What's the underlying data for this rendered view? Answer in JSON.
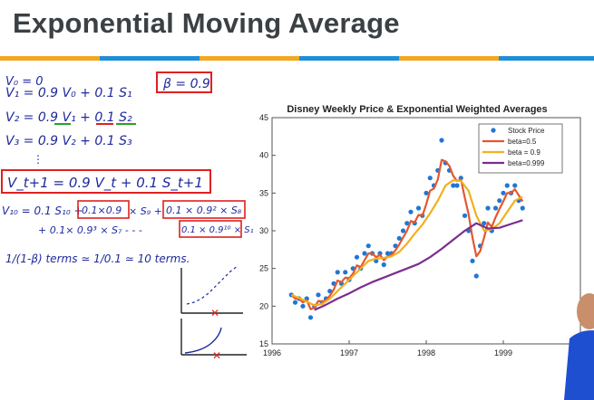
{
  "slide": {
    "title": "Exponential Moving Average",
    "stripe_colors": [
      "#f5a623",
      "#1f8fd6",
      "#f5a623",
      "#1f8fd6",
      "#f5a623",
      "#1f8fd6"
    ]
  },
  "notes": {
    "line1": "V₀ = 0",
    "line2": "V₁ = 0.9 V₀ + 0.1 S₁",
    "beta_box": "β = 0.9",
    "line3": "V₂ = 0.9 V₁ + 0.1 S₂",
    "line4": "V₃ = 0.9 V₂ + 0.1 S₃",
    "line5": "⋮",
    "box_formula": "V_t+1 = 0.9 V_t + 0.1 S_t+1",
    "v10_lhs": "V₁₀ = 0.1 S₁₀ +",
    "v10_t2": "0.1×0.9",
    "v10_t2b": "× S₉ +",
    "v10_t3": "0.1 × 0.9² × S₈",
    "v10_t4": "+ 0.1× 0.9³ × S₇   - - -",
    "v10_t5": "0.1 × 0.9¹⁰ × S₁",
    "terms": "1/(1-β) terms ≃ 1/0.1 ≃ 10 terms."
  },
  "chart_data": {
    "type": "line",
    "title": "Disney Weekly Price & Exponential Weighted Averages",
    "xlim": [
      1996,
      2000
    ],
    "ylim": [
      15,
      45
    ],
    "x_ticks": [
      "1996",
      "1997",
      "1998",
      "1999",
      "20"
    ],
    "y_ticks": [
      "15",
      "20",
      "25",
      "30",
      "35",
      "40",
      "45"
    ],
    "legend_position": "top-right",
    "series": [
      {
        "name": "Stock Price",
        "style": "points",
        "color": "#1f77d4",
        "x": [
          1996.25,
          1996.3,
          1996.35,
          1996.4,
          1996.45,
          1996.5,
          1996.55,
          1996.6,
          1996.65,
          1996.7,
          1996.75,
          1996.8,
          1996.85,
          1996.9,
          1996.95,
          1997.0,
          1997.05,
          1997.1,
          1997.15,
          1997.2,
          1997.25,
          1997.3,
          1997.35,
          1997.4,
          1997.45,
          1997.5,
          1997.55,
          1997.6,
          1997.65,
          1997.7,
          1997.75,
          1997.8,
          1997.85,
          1997.9,
          1997.95,
          1998.0,
          1998.05,
          1998.1,
          1998.15,
          1998.2,
          1998.25,
          1998.3,
          1998.35,
          1998.4,
          1998.45,
          1998.5,
          1998.55,
          1998.6,
          1998.65,
          1998.7,
          1998.75,
          1998.8,
          1998.85,
          1998.9,
          1998.95,
          1999.0,
          1999.05,
          1999.1,
          1999.15,
          1999.2,
          1999.25
        ],
        "y": [
          21.5,
          20.5,
          21,
          20,
          21,
          18.5,
          20,
          21.5,
          20.5,
          21,
          22,
          23,
          24.5,
          23,
          24.5,
          23.5,
          25,
          26.5,
          25,
          27,
          28,
          27,
          26,
          27,
          25.5,
          27,
          27,
          28,
          29,
          30,
          31,
          32.5,
          31,
          33,
          32,
          35,
          37,
          36,
          38,
          42,
          39,
          38,
          36,
          36,
          37,
          32,
          30,
          26,
          24,
          28,
          31,
          33,
          30,
          33,
          34,
          35,
          36,
          35,
          36,
          34,
          33
        ],
        "legend": "Stock Price"
      },
      {
        "name": "beta=0.5",
        "style": "line",
        "color": "#e4572e",
        "x": [
          1996.25,
          1996.3,
          1996.35,
          1996.4,
          1996.45,
          1996.5,
          1996.55,
          1996.6,
          1996.65,
          1996.7,
          1996.75,
          1996.8,
          1996.85,
          1996.9,
          1996.95,
          1997.0,
          1997.05,
          1997.1,
          1997.15,
          1997.2,
          1997.25,
          1997.3,
          1997.35,
          1997.4,
          1997.45,
          1997.5,
          1997.55,
          1997.6,
          1997.65,
          1997.7,
          1997.75,
          1997.8,
          1997.85,
          1997.9,
          1997.95,
          1998.0,
          1998.05,
          1998.1,
          1998.15,
          1998.2,
          1998.25,
          1998.3,
          1998.35,
          1998.4,
          1998.45,
          1998.5,
          1998.55,
          1998.6,
          1998.65,
          1998.7,
          1998.75,
          1998.8,
          1998.85,
          1998.9,
          1998.95,
          1999.0,
          1999.05,
          1999.1,
          1999.15,
          1999.2,
          1999.25
        ],
        "y": [
          21.5,
          21,
          21,
          20.5,
          20.8,
          19.6,
          19.8,
          20.7,
          20.6,
          20.8,
          21.4,
          22.2,
          23.4,
          23.2,
          23.8,
          23.7,
          24.3,
          25.4,
          25.2,
          26.1,
          27,
          27,
          26.5,
          26.8,
          26.1,
          26.6,
          26.8,
          27.4,
          28.2,
          29.1,
          30,
          31.3,
          31.1,
          32.1,
          32,
          33.5,
          35.3,
          35.6,
          36.8,
          39.4,
          39.2,
          38.6,
          37.3,
          36.6,
          36.8,
          34.4,
          32.2,
          29.1,
          26.6,
          27.3,
          29.1,
          31.1,
          30.5,
          31.8,
          32.9,
          33.9,
          35,
          35,
          35.5,
          34.7,
          33.9
        ]
      },
      {
        "name": "beta = 0.9",
        "style": "line",
        "color": "#f2b01e",
        "x": [
          1996.25,
          1996.35,
          1996.45,
          1996.55,
          1996.65,
          1996.75,
          1996.85,
          1996.95,
          1997.05,
          1997.15,
          1997.25,
          1997.35,
          1997.45,
          1997.55,
          1997.65,
          1997.75,
          1997.85,
          1997.95,
          1998.05,
          1998.15,
          1998.25,
          1998.35,
          1998.45,
          1998.55,
          1998.65,
          1998.75,
          1998.85,
          1998.95,
          1999.05,
          1999.15,
          1999.25
        ],
        "y": [
          21.5,
          21.1,
          20.6,
          20.1,
          20.3,
          21,
          22,
          23,
          24,
          25,
          26,
          26.3,
          26.4,
          26.6,
          27.2,
          28.3,
          29.6,
          30.8,
          32.3,
          34,
          36,
          36.7,
          36.6,
          35.3,
          32,
          30,
          30.2,
          31,
          32.5,
          34,
          34.5
        ]
      },
      {
        "name": "beta=0.999",
        "style": "line",
        "color": "#7b2d8e",
        "x": [
          1996.55,
          1996.7,
          1996.85,
          1997.0,
          1997.15,
          1997.3,
          1997.45,
          1997.6,
          1997.75,
          1997.9,
          1998.05,
          1998.2,
          1998.35,
          1998.5,
          1998.65,
          1998.8,
          1998.95,
          1999.1,
          1999.25
        ],
        "y": [
          19.5,
          20.2,
          21,
          21.7,
          22.5,
          23.2,
          23.8,
          24.4,
          25,
          25.6,
          26.5,
          27.6,
          28.8,
          30,
          31,
          30.3,
          30.4,
          30.9,
          31.4
        ]
      }
    ]
  }
}
